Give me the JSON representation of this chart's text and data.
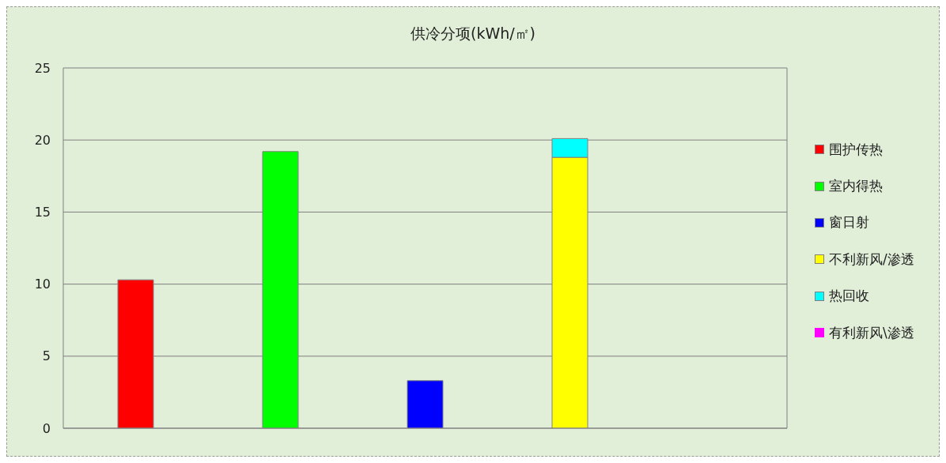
{
  "chart_data": {
    "type": "bar",
    "title": "供冷分项(kWh/㎡)",
    "categories": [
      null,
      null,
      null,
      null,
      null
    ],
    "stacked": true,
    "series": [
      {
        "name": "围护传热",
        "color": "#ff0000",
        "values": [
          10.3,
          null,
          null,
          null,
          null
        ]
      },
      {
        "name": "室内得热",
        "color": "#00ff00",
        "values": [
          null,
          19.2,
          null,
          null,
          null
        ]
      },
      {
        "name": "窗日射",
        "color": "#0000ff",
        "values": [
          null,
          null,
          3.3,
          null,
          null
        ]
      },
      {
        "name": "不利新风/渗透",
        "color": "#ffff00",
        "values": [
          null,
          null,
          null,
          18.8,
          null
        ]
      },
      {
        "name": "热回收",
        "color": "#00ffff",
        "values": [
          null,
          null,
          null,
          1.3,
          null
        ]
      },
      {
        "name": "有利新风\\渗透",
        "color": "#ff00ff",
        "values": [
          null,
          null,
          null,
          null,
          null
        ]
      }
    ],
    "ylim": [
      0,
      25
    ],
    "yticks": [
      0,
      5,
      10,
      15,
      20,
      25
    ],
    "grid": "y",
    "legend": "right"
  }
}
